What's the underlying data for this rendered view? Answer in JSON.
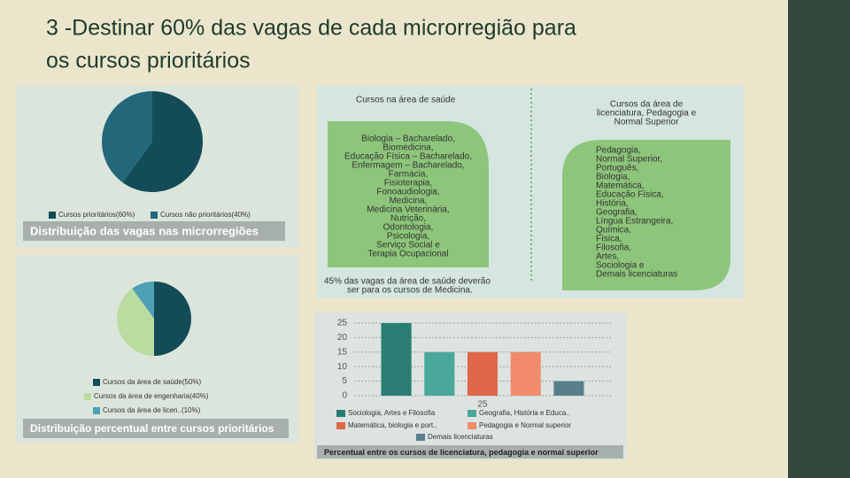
{
  "slide_title": [
    "3 -Destinar 60% das vagas de cada microrregião para",
    "os cursos prioritários"
  ],
  "chart_data": [
    {
      "type": "pie",
      "categories": [
        "Cursos prioritários(60%)",
        "Cursos não prioritários(40%)"
      ],
      "values": [
        60,
        40
      ],
      "colors": [
        "#134b57",
        "#22677a"
      ],
      "caption": "Distribuição das vagas nas microrregiões"
    },
    {
      "type": "pie",
      "categories": [
        "Cursos da área de saúde(50%)",
        "Cursos da área de engenharia(40%)",
        "Cursos da área de licen..(10%)"
      ],
      "values": [
        50,
        40,
        10
      ],
      "colors": [
        "#134b57",
        "#b9dda0",
        "#4fa0b5"
      ],
      "caption": "Distribuição percentual entre cursos prioritários"
    },
    {
      "type": "bar",
      "categories": [
        "25"
      ],
      "series": [
        {
          "name": "Sociologia, Artes e Filosofia",
          "color": "#2a7d72",
          "values": [
            25
          ]
        },
        {
          "name": "Geografia, História e Educa..",
          "color": "#4aa89a",
          "values": [
            15
          ]
        },
        {
          "name": "Matemática, biologia e port..",
          "color": "#e0664a",
          "values": [
            15
          ]
        },
        {
          "name": "Pedagogia e Normal superior",
          "color": "#f28a6c",
          "values": [
            15
          ]
        },
        {
          "name": "Demais licenciaturas",
          "color": "#5a7f8c",
          "values": [
            5
          ]
        }
      ],
      "ylim": [
        0,
        25
      ],
      "yticks": [
        0,
        5,
        10,
        15,
        20,
        25
      ],
      "grid": true,
      "caption": "Percentual entre os cursos de licenciatura, pedagogia e normal superior"
    }
  ],
  "panels": {
    "saude": {
      "title": [
        "Cursos na área de saúde"
      ],
      "items": [
        "Biologia – Bacharelado,",
        "Biomedicina,",
        "Educação Física – Bacharelado,",
        "Enfermagem – Bacharelado,",
        "Farmácia,",
        "Fisioterapia,",
        "Fonoaudiologia,",
        "Medicina,",
        "Medicina Veterinária,",
        "Nutrição,",
        "Odontologia,",
        "Psicologia,",
        "Serviço Social e",
        "Terapia Ocupacional"
      ],
      "note": [
        "45% das vagas da área de saúde deverão",
        "ser  para os cursos de Medicina."
      ]
    },
    "licenciatura": {
      "title": [
        "Cursos da área de",
        "licenciatura, Pedagogia e",
        "Normal Superior"
      ],
      "items": [
        "Pedagogia,",
        "Normal Superior,",
        "Português,",
        "Biologia,",
        "Matemática,",
        "Educação Física,",
        "História,",
        "Geografia,",
        "Língua Estrangeira,",
        "Química,",
        "Física,",
        "Filosofia,",
        "Artes,",
        "Sociologia e",
        "Demais licenciaturas"
      ]
    }
  }
}
